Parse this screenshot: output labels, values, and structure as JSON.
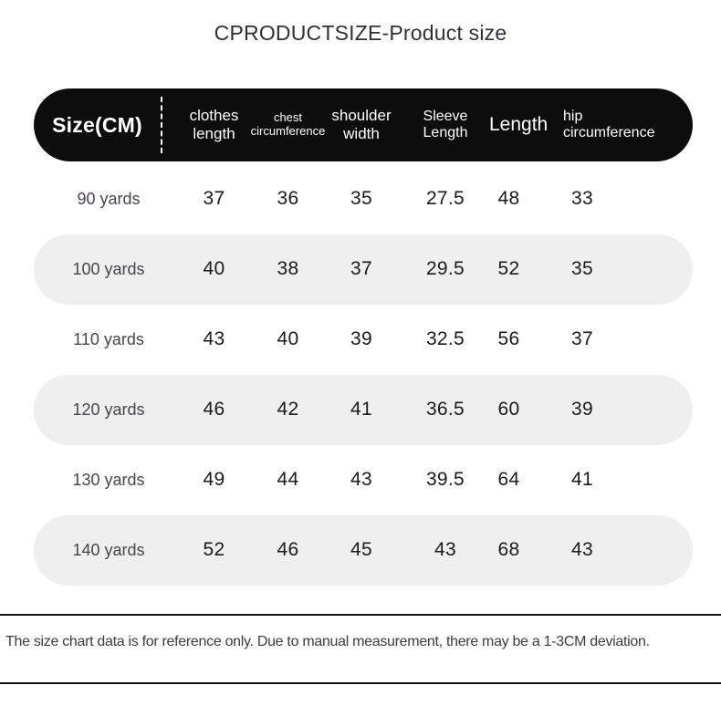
{
  "title": "CPRODUCTSIZE-Product size",
  "chart_data": {
    "type": "table",
    "title": "CPRODUCTSIZE-Product size",
    "size_column_header": "Size(CM)",
    "columns": [
      "clothes length",
      "chest circumference",
      "shoulder width",
      "Sleeve Length",
      "Length",
      "hip circumference"
    ],
    "rows": [
      {
        "size": "90 yards",
        "values": [
          "37",
          "36",
          "35",
          "27.5",
          "48",
          "33"
        ]
      },
      {
        "size": "100 yards",
        "values": [
          "40",
          "38",
          "37",
          "29.5",
          "52",
          "35"
        ]
      },
      {
        "size": "110 yards",
        "values": [
          "43",
          "40",
          "39",
          "32.5",
          "56",
          "37"
        ]
      },
      {
        "size": "120 yards",
        "values": [
          "46",
          "42",
          "41",
          "36.5",
          "60",
          "39"
        ]
      },
      {
        "size": "130 yards",
        "values": [
          "49",
          "44",
          "43",
          "39.5",
          "64",
          "41"
        ]
      },
      {
        "size": "140 yards",
        "values": [
          "52",
          "46",
          "45",
          "43",
          "68",
          "43"
        ]
      }
    ]
  },
  "footer": {
    "note": "The size chart data is for reference only. Due to manual measurement, there may be a 1-3CM deviation."
  },
  "colors": {
    "header_bg": "#0d0d0d",
    "header_text": "#ffffff",
    "alt_row_bg": "#efefef",
    "size_label_text": "#4c4150",
    "value_text": "#1a1a1a",
    "divider": "#111111",
    "title_text": "#312f3b",
    "note_text": "#403a3e"
  }
}
